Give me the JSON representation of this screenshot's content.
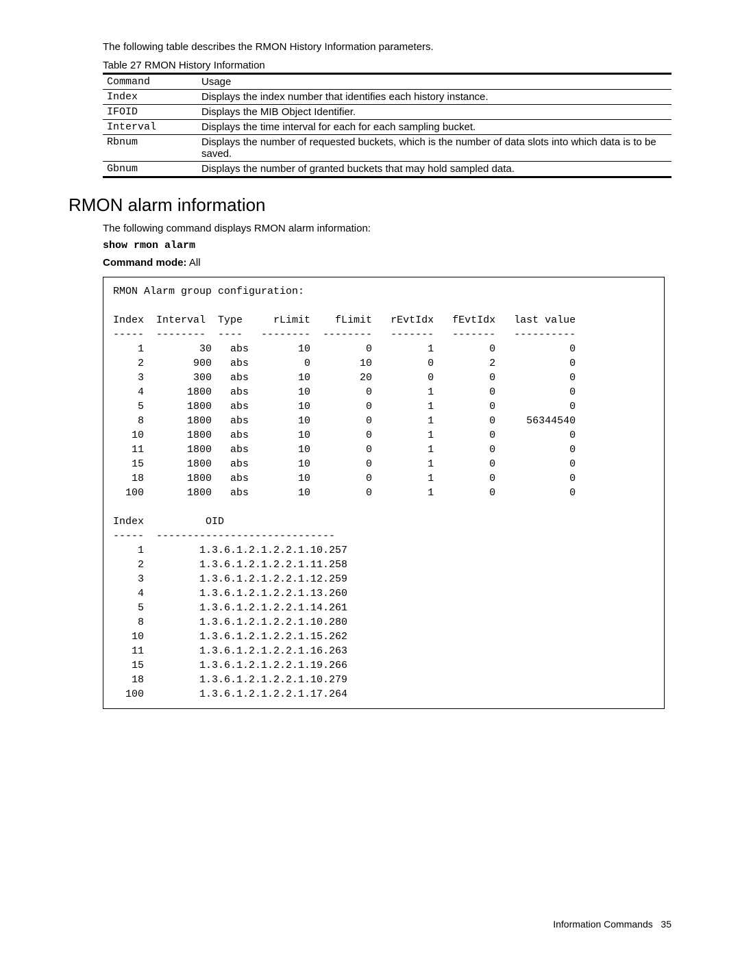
{
  "intro": "The following table describes the RMON History Information parameters.",
  "table_caption": "Table 27  RMON History Information",
  "table_headers": {
    "c1": "Command",
    "c2": "Usage"
  },
  "param_rows": [
    {
      "cmd": "Index",
      "usage": "Displays the index number that identifies each history instance."
    },
    {
      "cmd": "IFOID",
      "usage": "Displays the MIB Object Identifier."
    },
    {
      "cmd": "Interval",
      "usage": "Displays the time interval for each for each sampling bucket."
    },
    {
      "cmd": "Rbnum",
      "usage": "Displays the number of requested buckets, which is the number of data slots into which data is to be saved."
    },
    {
      "cmd": "Gbnum",
      "usage": "Displays the number of granted buckets that may hold sampled data."
    }
  ],
  "section_heading": "RMON alarm information",
  "section_intro": "The following command displays RMON alarm information:",
  "command": "show rmon alarm",
  "mode_label": "Command mode:",
  "mode_value": "All",
  "terminal": {
    "title": "RMON Alarm group configuration:",
    "cols": [
      "Index",
      "Interval",
      "Type",
      "rLimit",
      "fLimit",
      "rEvtIdx",
      "fEvtIdx",
      "last value"
    ],
    "dashes": [
      "-----",
      "--------",
      "----",
      "--------",
      "--------",
      "-------",
      "-------",
      "----------"
    ],
    "rows": [
      [
        "1",
        "30",
        "abs",
        "10",
        "0",
        "1",
        "0",
        "0"
      ],
      [
        "2",
        "900",
        "abs",
        "0",
        "10",
        "0",
        "2",
        "0"
      ],
      [
        "3",
        "300",
        "abs",
        "10",
        "20",
        "0",
        "0",
        "0"
      ],
      [
        "4",
        "1800",
        "abs",
        "10",
        "0",
        "1",
        "0",
        "0"
      ],
      [
        "5",
        "1800",
        "abs",
        "10",
        "0",
        "1",
        "0",
        "0"
      ],
      [
        "8",
        "1800",
        "abs",
        "10",
        "0",
        "1",
        "0",
        "56344540"
      ],
      [
        "10",
        "1800",
        "abs",
        "10",
        "0",
        "1",
        "0",
        "0"
      ],
      [
        "11",
        "1800",
        "abs",
        "10",
        "0",
        "1",
        "0",
        "0"
      ],
      [
        "15",
        "1800",
        "abs",
        "10",
        "0",
        "1",
        "0",
        "0"
      ],
      [
        "18",
        "1800",
        "abs",
        "10",
        "0",
        "1",
        "0",
        "0"
      ],
      [
        "100",
        "1800",
        "abs",
        "10",
        "0",
        "1",
        "0",
        "0"
      ]
    ],
    "oid_header": {
      "index": "Index",
      "oid": "OID"
    },
    "oid_dashes": {
      "index": "-----",
      "oid": "-----------------------------"
    },
    "oid_rows": [
      [
        "1",
        "1.3.6.1.2.1.2.2.1.10.257"
      ],
      [
        "2",
        "1.3.6.1.2.1.2.2.1.11.258"
      ],
      [
        "3",
        "1.3.6.1.2.1.2.2.1.12.259"
      ],
      [
        "4",
        "1.3.6.1.2.1.2.2.1.13.260"
      ],
      [
        "5",
        "1.3.6.1.2.1.2.2.1.14.261"
      ],
      [
        "8",
        "1.3.6.1.2.1.2.2.1.10.280"
      ],
      [
        "10",
        "1.3.6.1.2.1.2.2.1.15.262"
      ],
      [
        "11",
        "1.3.6.1.2.1.2.2.1.16.263"
      ],
      [
        "15",
        "1.3.6.1.2.1.2.2.1.19.266"
      ],
      [
        "18",
        "1.3.6.1.2.1.2.2.1.10.279"
      ],
      [
        "100",
        "1.3.6.1.2.1.2.2.1.17.264"
      ]
    ],
    "widths": {
      "index": 5,
      "interval": 9,
      "type": 5,
      "rlimit": 8,
      "flimit": 8,
      "revtidx": 8,
      "fevtidx": 8,
      "last": 11,
      "oid_index": 5,
      "oid": 31
    }
  },
  "footer": {
    "label": "Information Commands",
    "page": "35"
  }
}
